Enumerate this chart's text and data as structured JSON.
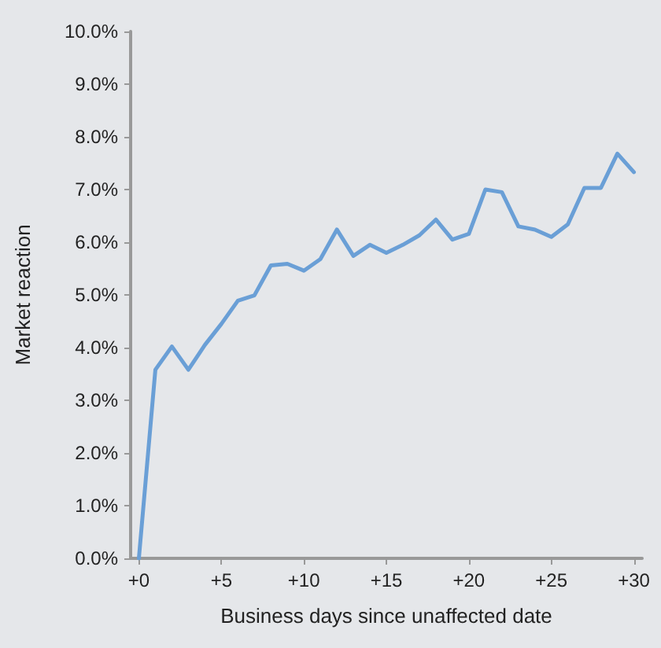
{
  "chart_data": {
    "type": "line",
    "xlabel": "Business days since unaffected date",
    "ylabel": "Market reaction",
    "x": [
      0,
      1,
      2,
      3,
      4,
      5,
      6,
      7,
      8,
      9,
      10,
      11,
      12,
      13,
      14,
      15,
      16,
      17,
      18,
      19,
      20,
      21,
      22,
      23,
      24,
      25,
      26,
      27,
      28,
      29,
      30
    ],
    "series": [
      {
        "color": "#6a9fd6",
        "values": [
          0,
          3.58,
          4.02,
          3.58,
          4.05,
          4.45,
          4.89,
          4.99,
          5.56,
          5.59,
          5.46,
          5.68,
          6.24,
          5.74,
          5.95,
          5.8,
          5.95,
          6.13,
          6.43,
          6.05,
          6.16,
          7.0,
          6.95,
          6.3,
          6.24,
          6.1,
          6.34,
          7.03,
          7.03,
          7.68,
          7.33
        ]
      }
    ],
    "xlim": [
      -0.5,
      30.5
    ],
    "xticks": [
      {
        "value": 0,
        "label": "+0"
      },
      {
        "value": 5,
        "label": "+5"
      },
      {
        "value": 10,
        "label": "+10"
      },
      {
        "value": 15,
        "label": "+15"
      },
      {
        "value": 20,
        "label": "+20"
      },
      {
        "value": 25,
        "label": "+25"
      },
      {
        "value": 30,
        "label": "+30"
      }
    ],
    "ylim": [
      0,
      10
    ],
    "yticks": [
      {
        "value": 0,
        "label": "0.0%"
      },
      {
        "value": 1,
        "label": "1.0%"
      },
      {
        "value": 2,
        "label": "2.0%"
      },
      {
        "value": 3,
        "label": "3.0%"
      },
      {
        "value": 4,
        "label": "4.0%"
      },
      {
        "value": 5,
        "label": "5.0%"
      },
      {
        "value": 6,
        "label": "6.0%"
      },
      {
        "value": 7,
        "label": "7.0%"
      },
      {
        "value": 8,
        "label": "8.0%"
      },
      {
        "value": 9,
        "label": "9.0%"
      },
      {
        "value": 10,
        "label": "10.0%"
      }
    ],
    "grid": false,
    "marker": "none",
    "line_style": "solid"
  }
}
